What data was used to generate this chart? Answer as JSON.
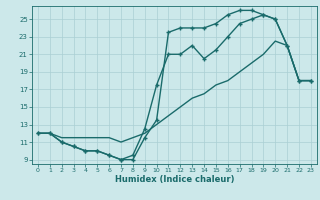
{
  "xlabel": "Humidex (Indice chaleur)",
  "bg_color": "#cce8ea",
  "grid_color": "#aacfd4",
  "line_color": "#1a6b6b",
  "xlim": [
    -0.5,
    23.5
  ],
  "ylim": [
    8.5,
    26.5
  ],
  "xticks": [
    0,
    1,
    2,
    3,
    4,
    5,
    6,
    7,
    8,
    9,
    10,
    11,
    12,
    13,
    14,
    15,
    16,
    17,
    18,
    19,
    20,
    21,
    22,
    23
  ],
  "yticks": [
    9,
    11,
    13,
    15,
    17,
    19,
    21,
    23,
    25
  ],
  "line1_x": [
    0,
    1,
    2,
    3,
    4,
    5,
    6,
    7,
    8,
    9,
    10,
    11,
    12,
    13,
    14,
    15,
    16,
    17,
    18,
    19,
    20,
    21,
    22,
    23
  ],
  "line1_y": [
    12.0,
    12.0,
    11.5,
    11.5,
    11.5,
    11.5,
    11.5,
    11.0,
    11.5,
    12.0,
    13.0,
    14.0,
    15.0,
    16.0,
    16.5,
    17.5,
    18.0,
    19.0,
    20.0,
    21.0,
    22.5,
    22.0,
    18.0,
    18.0
  ],
  "line2_x": [
    0,
    1,
    2,
    3,
    4,
    5,
    6,
    7,
    8,
    9,
    10,
    11,
    12,
    13,
    14,
    15,
    16,
    17,
    18,
    19,
    20,
    21,
    22,
    23
  ],
  "line2_y": [
    12.0,
    12.0,
    11.0,
    10.5,
    10.0,
    10.0,
    9.5,
    9.0,
    9.5,
    12.5,
    17.5,
    21.0,
    21.0,
    22.0,
    20.5,
    21.5,
    23.0,
    24.5,
    25.0,
    25.5,
    25.0,
    22.0,
    18.0,
    18.0
  ],
  "line3_x": [
    0,
    1,
    2,
    3,
    4,
    5,
    6,
    7,
    8,
    9,
    10,
    11,
    12,
    13,
    14,
    15,
    16,
    17,
    18,
    19,
    20,
    21,
    22,
    23
  ],
  "line3_y": [
    12.0,
    12.0,
    11.0,
    10.5,
    10.0,
    10.0,
    9.5,
    9.0,
    9.0,
    11.5,
    13.5,
    23.5,
    24.0,
    24.0,
    24.0,
    24.5,
    25.5,
    26.0,
    26.0,
    25.5,
    25.0,
    22.0,
    18.0,
    18.0
  ]
}
